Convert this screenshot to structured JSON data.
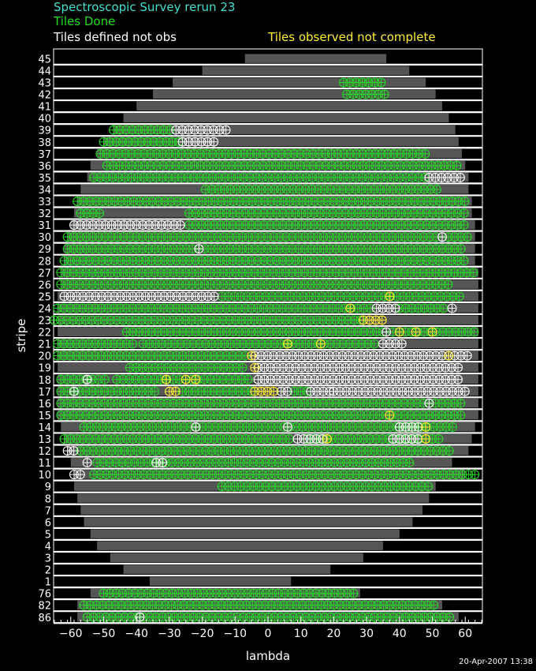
{
  "header": {
    "title": "Spectroscopic Survey rerun 23",
    "done": "Tiles Done",
    "defined": "Tiles defined not obs",
    "observed": "Tiles observed not complete"
  },
  "colors": {
    "title": "#40e0d0",
    "done": "#22dd22",
    "defined": "#ffffff",
    "observed": "#ffee33",
    "background": "#000000",
    "footprint": "#555555",
    "stripe_line": "#ffffff"
  },
  "footer": {
    "date": "20-Apr-2007 13:38"
  },
  "chart_data": {
    "type": "scatter",
    "xlabel": "lambda",
    "ylabel": "stripe",
    "xlim": [
      -65,
      65
    ],
    "x_ticks": [
      -60,
      -50,
      -40,
      -30,
      -20,
      -10,
      0,
      10,
      20,
      30,
      40,
      50,
      60
    ],
    "grid": false,
    "stripes": [
      {
        "label": "45",
        "extent": [
          -7,
          36
        ]
      },
      {
        "label": "44",
        "extent": [
          -20,
          43
        ]
      },
      {
        "label": "43",
        "extent": [
          -29,
          48
        ],
        "done": [
          [
            23,
            36
          ]
        ]
      },
      {
        "label": "42",
        "extent": [
          -35,
          51
        ],
        "done": [
          [
            24,
            37
          ]
        ]
      },
      {
        "label": "41",
        "extent": [
          -40,
          53
        ]
      },
      {
        "label": "40",
        "extent": [
          -44,
          55
        ]
      },
      {
        "label": "39",
        "extent": [
          -47,
          57
        ],
        "done": [
          [
            -47,
            -29
          ]
        ],
        "defined": [
          [
            -28,
            -12
          ]
        ]
      },
      {
        "label": "38",
        "extent": [
          -50,
          58
        ],
        "done": [
          [
            -50,
            -27
          ]
        ],
        "defined": [
          [
            -26,
            -15
          ]
        ]
      },
      {
        "label": "37",
        "extent": [
          -52,
          59
        ],
        "done": [
          [
            -51,
            48
          ]
        ]
      },
      {
        "label": "36",
        "extent": [
          -54,
          60
        ],
        "done": [
          [
            -49,
            59
          ]
        ]
      },
      {
        "label": "35",
        "extent": [
          -55,
          61
        ],
        "done": [
          [
            -53,
            48
          ]
        ],
        "defined": [
          [
            49,
            59
          ]
        ]
      },
      {
        "label": "34",
        "extent": [
          -57,
          61
        ],
        "done": [
          [
            -19,
            52
          ]
        ]
      },
      {
        "label": "33",
        "extent": [
          -58,
          62
        ],
        "done": [
          [
            -58,
            60
          ]
        ]
      },
      {
        "label": "32",
        "extent": [
          -59,
          62
        ],
        "done": [
          [
            -57,
            -50
          ],
          [
            -24,
            60
          ]
        ]
      },
      {
        "label": "31",
        "extent": [
          -60,
          63
        ],
        "defined": [
          [
            -59,
            -25
          ]
        ],
        "done": [
          [
            -24,
            61
          ]
        ]
      },
      {
        "label": "30",
        "extent": [
          -61,
          63
        ],
        "done": [
          [
            -61,
            61
          ]
        ],
        "defined": [
          [
            53,
            53
          ]
        ]
      },
      {
        "label": "29",
        "extent": [
          -62,
          63
        ],
        "done": [
          [
            -61,
            60
          ]
        ],
        "defined": [
          [
            -21,
            -21
          ]
        ]
      },
      {
        "label": "28",
        "extent": [
          -62,
          63
        ],
        "done": [
          [
            -62,
            61
          ]
        ]
      },
      {
        "label": "27",
        "extent": [
          -63,
          64
        ],
        "done": [
          [
            -63,
            63
          ]
        ]
      },
      {
        "label": "26",
        "extent": [
          -63,
          64
        ],
        "done": [
          [
            -63,
            55
          ]
        ]
      },
      {
        "label": "25",
        "extent": [
          -64,
          64
        ],
        "defined": [
          [
            -62,
            -15
          ]
        ],
        "done": [
          [
            -14,
            60
          ]
        ],
        "observed": [
          [
            37,
            37
          ]
        ]
      },
      {
        "label": "24",
        "extent": [
          -64,
          64
        ],
        "done": [
          [
            -64,
            31
          ],
          [
            40,
            55
          ]
        ],
        "observed": [
          [
            25,
            25
          ]
        ],
        "defined": [
          [
            33,
            39
          ],
          [
            56,
            56
          ]
        ]
      },
      {
        "label": "23",
        "extent": [
          -64,
          64
        ],
        "done": [
          [
            -65,
            29
          ]
        ],
        "observed": [
          [
            29,
            35
          ]
        ]
      },
      {
        "label": "22",
        "extent": [
          -64,
          64
        ],
        "done": [
          [
            -43,
            35
          ],
          [
            38,
            63
          ]
        ],
        "defined": [
          [
            36,
            36
          ]
        ],
        "observed": [
          [
            40,
            40
          ],
          [
            45,
            45
          ],
          [
            50,
            50
          ]
        ]
      },
      {
        "label": "21",
        "extent": [
          -64,
          64
        ],
        "done": [
          [
            -64,
            -41
          ],
          [
            -38,
            34
          ]
        ],
        "defined": [
          [
            35,
            42
          ]
        ],
        "observed": [
          [
            6,
            6
          ],
          [
            16,
            16
          ]
        ]
      },
      {
        "label": "20",
        "extent": [
          -64,
          64
        ],
        "done": [
          [
            -64,
            -6
          ]
        ],
        "observed": [
          [
            -5,
            -4
          ],
          [
            55,
            55
          ]
        ],
        "defined": [
          [
            -4,
            62
          ]
        ]
      },
      {
        "label": "19",
        "extent": [
          -64,
          64
        ],
        "done": [
          [
            -42,
            -6
          ]
        ],
        "observed": [
          [
            -4,
            -3
          ]
        ],
        "defined": [
          [
            -3,
            58
          ]
        ]
      },
      {
        "label": "18",
        "extent": [
          -64,
          64
        ],
        "done": [
          [
            -63,
            -48
          ],
          [
            -46,
            -5
          ]
        ],
        "defined": [
          [
            -55,
            -55
          ],
          [
            -3,
            59
          ]
        ],
        "observed": [
          [
            -31,
            -31
          ],
          [
            -25,
            -25
          ],
          [
            -22,
            -22
          ]
        ]
      },
      {
        "label": "17",
        "extent": [
          -64,
          64
        ],
        "done": [
          [
            -63,
            -33
          ],
          [
            -26,
            -5
          ],
          [
            8,
            12
          ]
        ],
        "observed": [
          [
            -30,
            -28
          ],
          [
            -4,
            3
          ]
        ],
        "defined": [
          [
            -59,
            -59
          ],
          [
            4,
            7
          ],
          [
            13,
            20
          ],
          [
            20,
            61
          ]
        ]
      },
      {
        "label": "16",
        "extent": [
          -64,
          64
        ],
        "done": [
          [
            -63,
            59
          ]
        ],
        "defined": [
          [
            49,
            49
          ]
        ]
      },
      {
        "label": "15",
        "extent": [
          -64,
          64
        ],
        "done": [
          [
            -63,
            59
          ]
        ],
        "observed": [
          [
            37,
            37
          ]
        ]
      },
      {
        "label": "14",
        "extent": [
          -63,
          63
        ],
        "done": [
          [
            -56,
            57
          ]
        ],
        "defined": [
          [
            -22,
            -22
          ],
          [
            6,
            6
          ],
          [
            40,
            46
          ]
        ],
        "observed": [
          [
            48,
            48
          ]
        ]
      },
      {
        "label": "13",
        "extent": [
          -62,
          62
        ],
        "done": [
          [
            -62,
            8
          ],
          [
            12,
            53
          ]
        ],
        "defined": [
          [
            9,
            17
          ],
          [
            38,
            47
          ]
        ],
        "observed": [
          [
            18,
            18
          ],
          [
            48,
            48
          ]
        ]
      },
      {
        "label": "12",
        "extent": [
          -61,
          61
        ],
        "defined": [
          [
            -61,
            -58
          ]
        ],
        "done": [
          [
            -57,
            56
          ]
        ]
      },
      {
        "label": "11",
        "extent": [
          -60,
          56
        ],
        "done": [
          [
            -52,
            43
          ]
        ],
        "defined": [
          [
            -55,
            -55
          ],
          [
            -34,
            -32
          ]
        ]
      },
      {
        "label": "10",
        "extent": [
          -59,
          60
        ],
        "defined": [
          [
            -59,
            -57
          ]
        ],
        "done": [
          [
            -53,
            64
          ]
        ]
      },
      {
        "label": "9",
        "extent": [
          -59,
          51
        ],
        "done": [
          [
            -14,
            50
          ]
        ]
      },
      {
        "label": "8",
        "extent": [
          -58,
          49
        ]
      },
      {
        "label": "7",
        "extent": [
          -57,
          47
        ]
      },
      {
        "label": "6",
        "extent": [
          -56,
          44
        ]
      },
      {
        "label": "5",
        "extent": [
          -54,
          40
        ]
      },
      {
        "label": "4",
        "extent": [
          -52,
          35
        ]
      },
      {
        "label": "3",
        "extent": [
          -48,
          29
        ]
      },
      {
        "label": "2",
        "extent": [
          -44,
          19
        ]
      },
      {
        "label": "1",
        "extent": [
          -36,
          7
        ]
      },
      {
        "label": "76",
        "extent": [
          -54,
          28
        ],
        "done": [
          [
            -50,
            27
          ]
        ]
      },
      {
        "label": "82",
        "extent": [
          -58,
          53
        ],
        "done": [
          [
            -56,
            52
          ]
        ]
      },
      {
        "label": "86",
        "extent": [
          -58,
          58
        ],
        "done": [
          [
            -55,
            56
          ]
        ],
        "defined": [
          [
            -39,
            -39
          ]
        ]
      }
    ]
  }
}
